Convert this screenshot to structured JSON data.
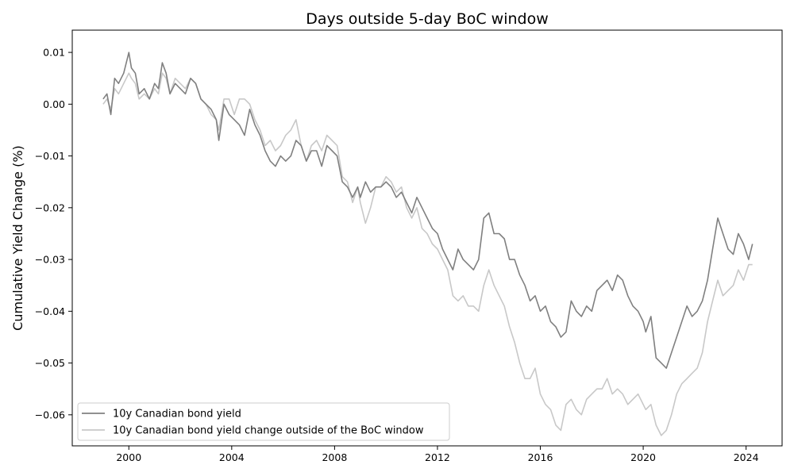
{
  "chart_data": {
    "type": "line",
    "title": "Days outside 5-day BoC window",
    "xlabel": "",
    "ylabel": "Cumulative Yield Change (%)",
    "xlim": [
      1997.8,
      2025.4
    ],
    "ylim": [
      -0.066,
      0.0143
    ],
    "x_ticks": [
      2000,
      2004,
      2008,
      2012,
      2016,
      2020,
      2024
    ],
    "x_tick_labels": [
      "2000",
      "2004",
      "2008",
      "2012",
      "2016",
      "2020",
      "2024"
    ],
    "y_ticks": [
      0.01,
      0.0,
      -0.01,
      -0.02,
      -0.03,
      -0.04,
      -0.05,
      -0.06
    ],
    "y_tick_labels": [
      "0.01",
      "0.00",
      "−0.01",
      "−0.02",
      "−0.03",
      "−0.04",
      "−0.05",
      "−0.06"
    ],
    "grid": false,
    "legend_position": "bottom-left",
    "series": [
      {
        "name": "10y Canadian bond yield",
        "color": "#808080",
        "x": [
          1999.0,
          1999.15,
          1999.3,
          1999.45,
          1999.6,
          1999.8,
          2000.0,
          2000.1,
          2000.25,
          2000.4,
          2000.6,
          2000.8,
          2001.0,
          2001.15,
          2001.3,
          2001.45,
          2001.6,
          2001.8,
          2002.0,
          2002.2,
          2002.4,
          2002.6,
          2002.8,
          2003.0,
          2003.2,
          2003.4,
          2003.5,
          2003.7,
          2003.9,
          2004.1,
          2004.3,
          2004.5,
          2004.7,
          2004.9,
          2005.1,
          2005.3,
          2005.5,
          2005.7,
          2005.9,
          2006.1,
          2006.3,
          2006.5,
          2006.7,
          2006.9,
          2007.1,
          2007.3,
          2007.5,
          2007.7,
          2007.9,
          2008.1,
          2008.3,
          2008.5,
          2008.7,
          2008.9,
          2009.0,
          2009.2,
          2009.4,
          2009.6,
          2009.8,
          2010.0,
          2010.2,
          2010.4,
          2010.6,
          2010.8,
          2011.0,
          2011.2,
          2011.4,
          2011.6,
          2011.8,
          2012.0,
          2012.2,
          2012.4,
          2012.6,
          2012.8,
          2013.0,
          2013.2,
          2013.4,
          2013.6,
          2013.8,
          2014.0,
          2014.2,
          2014.4,
          2014.6,
          2014.8,
          2015.0,
          2015.2,
          2015.4,
          2015.6,
          2015.8,
          2016.0,
          2016.2,
          2016.4,
          2016.6,
          2016.8,
          2017.0,
          2017.2,
          2017.4,
          2017.6,
          2017.8,
          2018.0,
          2018.2,
          2018.4,
          2018.6,
          2018.8,
          2019.0,
          2019.2,
          2019.4,
          2019.6,
          2019.8,
          2020.0,
          2020.1,
          2020.3,
          2020.5,
          2020.7,
          2020.9,
          2021.1,
          2021.3,
          2021.5,
          2021.7,
          2021.9,
          2022.1,
          2022.3,
          2022.5,
          2022.7,
          2022.9,
          2023.1,
          2023.3,
          2023.5,
          2023.7,
          2023.9,
          2024.1,
          2024.25
        ],
        "values": [
          0.001,
          0.002,
          -0.002,
          0.005,
          0.004,
          0.006,
          0.01,
          0.007,
          0.006,
          0.002,
          0.003,
          0.001,
          0.004,
          0.003,
          0.008,
          0.006,
          0.002,
          0.004,
          0.003,
          0.002,
          0.005,
          0.004,
          0.001,
          0.0,
          -0.001,
          -0.003,
          -0.007,
          0.0,
          -0.002,
          -0.003,
          -0.004,
          -0.006,
          -0.001,
          -0.004,
          -0.006,
          -0.009,
          -0.011,
          -0.012,
          -0.01,
          -0.011,
          -0.01,
          -0.007,
          -0.008,
          -0.011,
          -0.009,
          -0.009,
          -0.012,
          -0.008,
          -0.009,
          -0.01,
          -0.015,
          -0.016,
          -0.018,
          -0.016,
          -0.018,
          -0.015,
          -0.017,
          -0.016,
          -0.016,
          -0.015,
          -0.016,
          -0.018,
          -0.017,
          -0.019,
          -0.021,
          -0.018,
          -0.02,
          -0.022,
          -0.024,
          -0.025,
          -0.028,
          -0.03,
          -0.032,
          -0.028,
          -0.03,
          -0.031,
          -0.032,
          -0.03,
          -0.022,
          -0.021,
          -0.025,
          -0.025,
          -0.026,
          -0.03,
          -0.03,
          -0.033,
          -0.035,
          -0.038,
          -0.037,
          -0.04,
          -0.039,
          -0.042,
          -0.043,
          -0.045,
          -0.044,
          -0.038,
          -0.04,
          -0.041,
          -0.039,
          -0.04,
          -0.036,
          -0.035,
          -0.034,
          -0.036,
          -0.033,
          -0.034,
          -0.037,
          -0.039,
          -0.04,
          -0.042,
          -0.044,
          -0.041,
          -0.049,
          -0.05,
          -0.051,
          -0.048,
          -0.045,
          -0.042,
          -0.039,
          -0.041,
          -0.04,
          -0.038,
          -0.034,
          -0.028,
          -0.022,
          -0.025,
          -0.028,
          -0.029,
          -0.025,
          -0.027,
          -0.03,
          -0.027
        ]
      },
      {
        "name": "10y Canadian bond yield change outside of the BoC window",
        "color": "#c8c8c8",
        "x": [
          1999.0,
          1999.15,
          1999.3,
          1999.45,
          1999.6,
          1999.8,
          2000.0,
          2000.1,
          2000.25,
          2000.4,
          2000.6,
          2000.8,
          2001.0,
          2001.15,
          2001.3,
          2001.45,
          2001.6,
          2001.8,
          2002.0,
          2002.2,
          2002.4,
          2002.6,
          2002.8,
          2003.0,
          2003.2,
          2003.4,
          2003.5,
          2003.7,
          2003.9,
          2004.1,
          2004.3,
          2004.5,
          2004.7,
          2004.9,
          2005.1,
          2005.3,
          2005.5,
          2005.7,
          2005.9,
          2006.1,
          2006.3,
          2006.5,
          2006.7,
          2006.9,
          2007.1,
          2007.3,
          2007.5,
          2007.7,
          2007.9,
          2008.1,
          2008.3,
          2008.5,
          2008.7,
          2008.9,
          2009.0,
          2009.2,
          2009.4,
          2009.6,
          2009.8,
          2010.0,
          2010.2,
          2010.4,
          2010.6,
          2010.8,
          2011.0,
          2011.2,
          2011.4,
          2011.6,
          2011.8,
          2012.0,
          2012.2,
          2012.4,
          2012.6,
          2012.8,
          2013.0,
          2013.2,
          2013.4,
          2013.6,
          2013.8,
          2014.0,
          2014.2,
          2014.4,
          2014.6,
          2014.8,
          2015.0,
          2015.2,
          2015.4,
          2015.6,
          2015.8,
          2016.0,
          2016.2,
          2016.4,
          2016.6,
          2016.8,
          2017.0,
          2017.2,
          2017.4,
          2017.6,
          2017.8,
          2018.0,
          2018.2,
          2018.4,
          2018.6,
          2018.8,
          2019.0,
          2019.2,
          2019.4,
          2019.6,
          2019.8,
          2020.0,
          2020.1,
          2020.3,
          2020.5,
          2020.7,
          2020.9,
          2021.1,
          2021.3,
          2021.5,
          2021.7,
          2021.9,
          2022.1,
          2022.3,
          2022.5,
          2022.7,
          2022.9,
          2023.1,
          2023.3,
          2023.5,
          2023.7,
          2023.9,
          2024.1,
          2024.25
        ],
        "values": [
          0.0,
          0.001,
          -0.001,
          0.003,
          0.002,
          0.004,
          0.006,
          0.005,
          0.004,
          0.001,
          0.002,
          0.001,
          0.003,
          0.002,
          0.006,
          0.005,
          0.002,
          0.005,
          0.004,
          0.003,
          0.005,
          0.004,
          0.001,
          0.0,
          -0.002,
          -0.003,
          -0.005,
          0.001,
          0.001,
          -0.002,
          0.001,
          0.001,
          0.0,
          -0.003,
          -0.005,
          -0.008,
          -0.007,
          -0.009,
          -0.008,
          -0.006,
          -0.005,
          -0.003,
          -0.008,
          -0.011,
          -0.008,
          -0.007,
          -0.009,
          -0.006,
          -0.007,
          -0.008,
          -0.014,
          -0.015,
          -0.019,
          -0.016,
          -0.019,
          -0.023,
          -0.02,
          -0.016,
          -0.016,
          -0.014,
          -0.015,
          -0.017,
          -0.016,
          -0.02,
          -0.022,
          -0.02,
          -0.024,
          -0.025,
          -0.027,
          -0.028,
          -0.03,
          -0.032,
          -0.037,
          -0.038,
          -0.037,
          -0.039,
          -0.039,
          -0.04,
          -0.035,
          -0.032,
          -0.035,
          -0.037,
          -0.039,
          -0.043,
          -0.046,
          -0.05,
          -0.053,
          -0.053,
          -0.051,
          -0.056,
          -0.058,
          -0.059,
          -0.062,
          -0.063,
          -0.058,
          -0.057,
          -0.059,
          -0.06,
          -0.057,
          -0.056,
          -0.055,
          -0.055,
          -0.053,
          -0.056,
          -0.055,
          -0.056,
          -0.058,
          -0.057,
          -0.056,
          -0.058,
          -0.059,
          -0.058,
          -0.062,
          -0.064,
          -0.063,
          -0.06,
          -0.056,
          -0.054,
          -0.053,
          -0.052,
          -0.051,
          -0.048,
          -0.042,
          -0.038,
          -0.034,
          -0.037,
          -0.036,
          -0.035,
          -0.032,
          -0.034,
          -0.031,
          -0.031
        ]
      }
    ]
  }
}
